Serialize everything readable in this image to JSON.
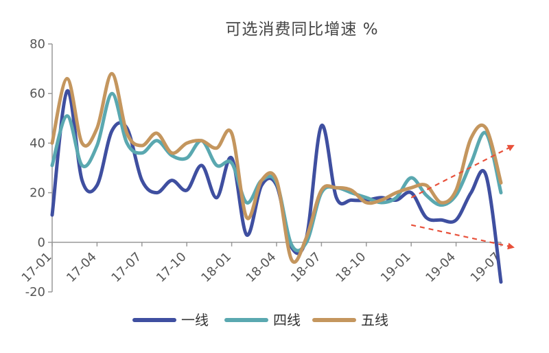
{
  "chart_data": {
    "type": "line",
    "title": "可选消费同比增速  %",
    "xlabel": "",
    "ylabel": "",
    "ylim": [
      -20,
      80
    ],
    "yticks": [
      "80",
      "60",
      "40",
      "20",
      "0",
      "-20"
    ],
    "xtick_labels": [
      "17-01",
      "17-04",
      "17-07",
      "17-10",
      "18-01",
      "18-04",
      "18-07",
      "18-10",
      "19-01",
      "19-04",
      "19-07"
    ],
    "x": [
      "17-01",
      "17-02",
      "17-03",
      "17-04",
      "17-05",
      "17-06",
      "17-07",
      "17-08",
      "17-09",
      "17-10",
      "17-11",
      "17-12",
      "18-01",
      "18-02",
      "18-03",
      "18-04",
      "18-05",
      "18-06",
      "18-07",
      "18-08",
      "18-09",
      "18-10",
      "18-11",
      "18-12",
      "19-01",
      "19-02",
      "19-03",
      "19-04",
      "19-05",
      "19-06",
      "19-07"
    ],
    "legend_position": "bottom",
    "series": [
      {
        "name": "一线",
        "color": "#3f4fa0",
        "values": [
          11,
          61,
          25,
          23,
          45,
          46,
          25,
          20,
          25,
          21,
          31,
          18,
          34,
          3,
          23,
          23,
          -2,
          2,
          47,
          18,
          17,
          17,
          18,
          17,
          20,
          10,
          9,
          9,
          20,
          27,
          -16
        ]
      },
      {
        "name": "四线",
        "color": "#5aa8b0",
        "values": [
          31,
          51,
          31,
          39,
          60,
          40,
          36,
          41,
          35,
          34,
          41,
          31,
          32,
          16,
          25,
          24,
          -1,
          0,
          20,
          22,
          20,
          18,
          16,
          18,
          26,
          19,
          15,
          19,
          32,
          44,
          20
        ]
      },
      {
        "name": "五线",
        "color": "#c4965e",
        "values": [
          40,
          66,
          40,
          46,
          68,
          44,
          39,
          44,
          36,
          40,
          41,
          38,
          44,
          10,
          25,
          25,
          -7,
          2,
          21,
          22,
          21,
          16,
          17,
          20,
          22,
          23,
          16,
          21,
          42,
          46,
          24
        ]
      }
    ],
    "annotations": [
      {
        "type": "dashed-arrow",
        "color": "#e8503a",
        "from": {
          "x": "19-01",
          "y": 18
        },
        "to": {
          "x": "19-07",
          "y": 39
        }
      },
      {
        "type": "dashed-arrow",
        "color": "#e8503a",
        "from": {
          "x": "19-01",
          "y": 7
        },
        "to": {
          "x": "19-07",
          "y": -2
        }
      }
    ]
  }
}
